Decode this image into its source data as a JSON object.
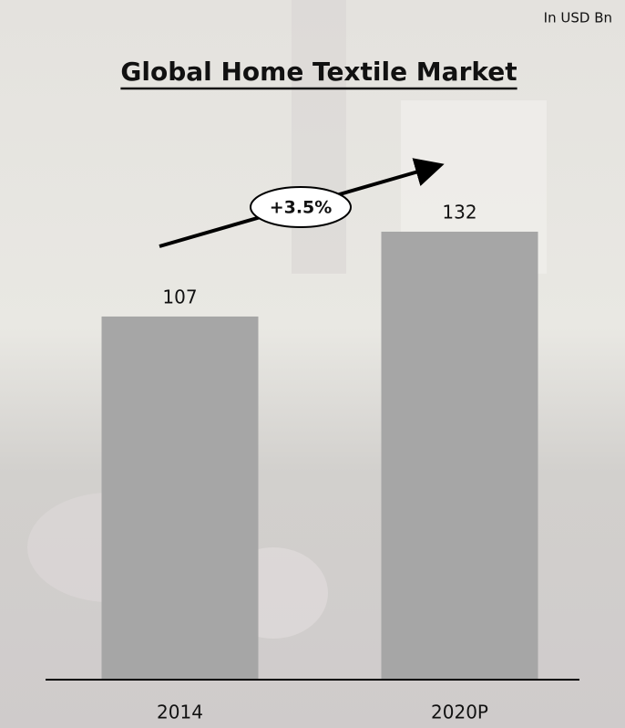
{
  "chart_data": {
    "type": "bar",
    "title": "Global Home Textile Market",
    "unit_label": "In USD Bn",
    "annotation": "+3.5%",
    "categories": [
      "2014",
      "2020P"
    ],
    "values": [
      107,
      132
    ],
    "color": "#a6a6a6",
    "ylim": [
      0,
      200
    ]
  }
}
